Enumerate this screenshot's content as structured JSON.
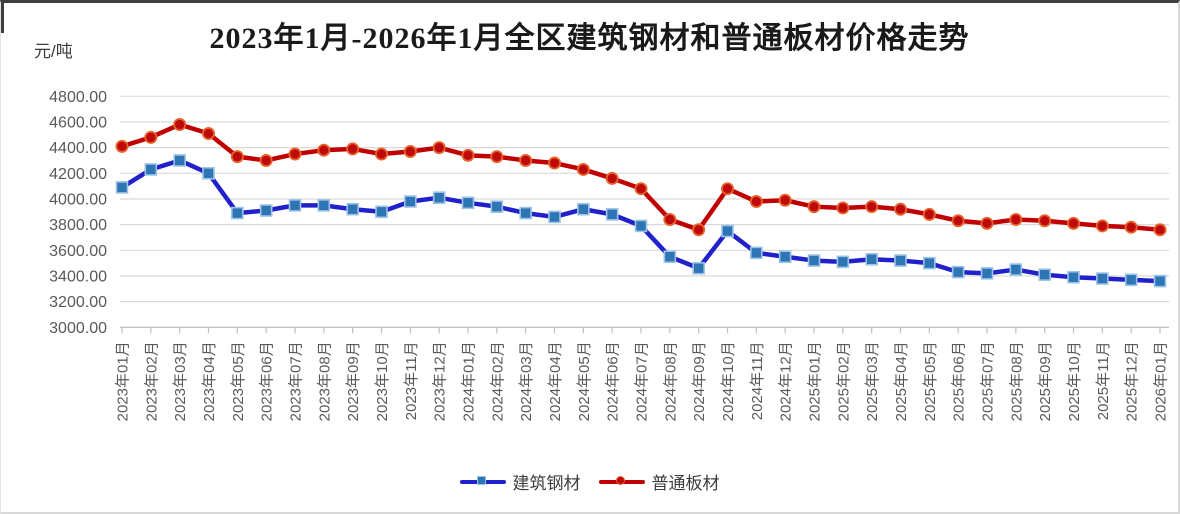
{
  "title": "2023年1月-2026年1月全区建筑钢材和普通板材价格走势",
  "y_axis_unit": "元/吨",
  "chart_data": {
    "type": "line",
    "title": "2023年1月-2026年1月全区建筑钢材和普通板材价格走势",
    "y_unit_label": "元/吨",
    "ylim": [
      3000,
      4800
    ],
    "y_tick_step": 200,
    "y_tick_labels": [
      "4800.00",
      "4600.00",
      "4400.00",
      "4200.00",
      "4000.00",
      "3800.00",
      "3600.00",
      "3400.00",
      "3200.00",
      "3000.00"
    ],
    "grid": true,
    "legend_position": "bottom",
    "x_label_rotation": 90,
    "categories": [
      "2023年01月",
      "2023年02月",
      "2023年03月",
      "2023年04月",
      "2023年05月",
      "2023年06月",
      "2023年07月",
      "2023年08月",
      "2023年09月",
      "2023年10月",
      "2023年11月",
      "2023年12月",
      "2024年01月",
      "2024年02月",
      "2024年03月",
      "2024年04月",
      "2024年05月",
      "2024年06月",
      "2024年07月",
      "2024年08月",
      "2024年09月",
      "2024年10月",
      "2024年11月",
      "2024年12月",
      "2025年01月",
      "2025年02月",
      "2025年03月",
      "2025年04月",
      "2025年05月",
      "2025年06月",
      "2025年07月",
      "2025年08月",
      "2025年09月",
      "2025年10月",
      "2025年11月",
      "2025年12月",
      "2026年01月"
    ],
    "series": [
      {
        "name": "建筑钢材",
        "marker": "square",
        "line_color": "#2121CC",
        "marker_fill": "#2E75B6",
        "marker_stroke": "#9DC3E6",
        "values": [
          4090,
          4230,
          4300,
          4200,
          3890,
          3910,
          3950,
          3950,
          3920,
          3900,
          3980,
          4010,
          3970,
          3940,
          3890,
          3860,
          3920,
          3880,
          3790,
          3550,
          3460,
          3750,
          3580,
          3550,
          3520,
          3510,
          3530,
          3520,
          3500,
          3430,
          3420,
          3450,
          3410,
          3390,
          3380,
          3370,
          3360
        ]
      },
      {
        "name": "普通板材",
        "marker": "circle",
        "line_color": "#C00000",
        "marker_fill": "#BE0A0A",
        "marker_stroke": "#E8632C",
        "values": [
          4410,
          4480,
          4580,
          4510,
          4330,
          4300,
          4350,
          4380,
          4390,
          4350,
          4370,
          4400,
          4340,
          4330,
          4300,
          4280,
          4230,
          4160,
          4080,
          3840,
          3760,
          4080,
          3980,
          3990,
          3940,
          3930,
          3940,
          3920,
          3880,
          3830,
          3810,
          3840,
          3830,
          3810,
          3790,
          3780,
          3760
        ]
      }
    ],
    "colors": {
      "gridline": "#D9D9D9",
      "axis_line": "#BFBFBF",
      "tick_label": "#595959",
      "title_text": "#1A1A1A"
    }
  }
}
